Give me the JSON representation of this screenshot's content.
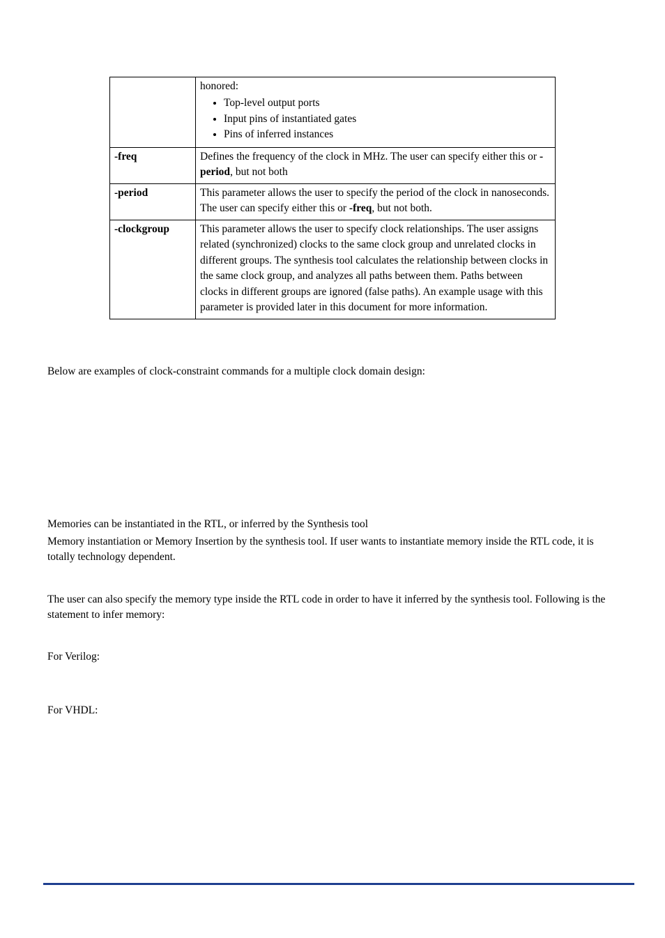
{
  "table": {
    "rows": [
      {
        "param": "",
        "lead": "honored:",
        "bullets": [
          "Top-level output ports",
          "Input pins of instantiated gates",
          "Pins of inferred instances"
        ]
      },
      {
        "param": "-freq",
        "desc_pre": "Defines the frequency of the clock in MHz. The user can specify either this or ",
        "desc_bold": "-period",
        "desc_post": ", but not both"
      },
      {
        "param": "-period",
        "desc_pre": "This parameter allows the user to specify the period of the clock in nanoseconds. The user can specify either this or ",
        "desc_bold": "-freq",
        "desc_post": ", but not both."
      },
      {
        "param": "-clockgroup",
        "desc_plain": "This parameter allows the user to specify clock relationships. The user assigns related (synchronized) clocks to the same clock group and unrelated clocks in different groups.  The synthesis tool calculates the relationship between clocks in the same clock group, and analyzes all paths between them.  Paths between clocks in different groups are ignored (false paths). An example usage with this parameter is provided later in this document for more information."
      }
    ]
  },
  "paragraphs": {
    "intro": "Below are examples of clock-constraint commands for a multiple clock domain design:",
    "memories_1": "Memories can be instantiated in the RTL, or inferred by the Synthesis tool",
    "memories_2": "Memory instantiation or Memory Insertion by the synthesis tool. If user wants to instantiate memory inside the RTL code, it is totally technology dependent.",
    "infer": "The user can also specify the memory type inside the RTL code in order to have it inferred by the synthesis tool. Following is the statement to infer memory:",
    "verilog_label": "For Verilog:",
    "vhdl_label": "For VHDL:"
  },
  "colors": {
    "footer_rule": "#1f3f8f",
    "text": "#000000",
    "background": "#ffffff"
  },
  "fonts": {
    "body_family": "Palatino / Book Antiqua serif",
    "body_size_pt": 12
  }
}
